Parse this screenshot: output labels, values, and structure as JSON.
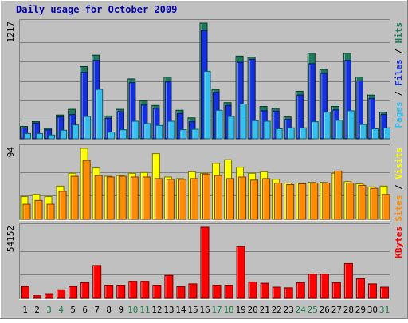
{
  "chart_data": {
    "type": "bar",
    "title": "Daily usage for October 2009",
    "days": [
      "1",
      "2",
      "3",
      "4",
      "5",
      "6",
      "7",
      "8",
      "9",
      "10",
      "11",
      "12",
      "13",
      "14",
      "15",
      "16",
      "17",
      "18",
      "19",
      "20",
      "21",
      "22",
      "23",
      "24",
      "25",
      "26",
      "27",
      "28",
      "29",
      "30",
      "31"
    ],
    "weekend_days": [
      "3",
      "4",
      "10",
      "11",
      "17",
      "18",
      "24",
      "25",
      "31"
    ],
    "panels": [
      {
        "id": "hits",
        "max_label": "1217",
        "ymax": 1217,
        "right_label": {
          "pages": "Pages",
          "files": "Files",
          "hits": "Hits",
          "sep": " / "
        },
        "series": [
          {
            "name": "Hits",
            "color": "#1b7a5a",
            "values": [
              130,
              180,
              110,
              250,
              310,
              760,
              880,
              240,
              310,
              630,
              400,
              350,
              650,
              300,
              220,
              1217,
              520,
              380,
              870,
              860,
              340,
              320,
              230,
              500,
              900,
              730,
              340,
              900,
              650,
              460,
              280
            ]
          },
          {
            "name": "Files",
            "color": "#1230e0",
            "values": [
              115,
              165,
              95,
              230,
              255,
              700,
              825,
              215,
              285,
              590,
              355,
              320,
              600,
              265,
              180,
              1140,
              490,
              350,
              805,
              835,
              295,
              290,
              205,
              460,
              790,
              690,
              305,
              825,
              610,
              425,
              255
            ]
          },
          {
            "name": "Pages",
            "color": "#33c0f0",
            "values": [
              55,
              55,
              40,
              90,
              145,
              235,
              520,
              70,
              95,
              185,
              160,
              140,
              185,
              95,
              100,
              710,
              300,
              235,
              365,
              190,
              185,
              105,
              115,
              115,
              180,
              280,
              195,
              295,
              150,
              105,
              115
            ]
          }
        ]
      },
      {
        "id": "visits",
        "max_label": "94",
        "ymax": 94,
        "right_label": {
          "sites": "Sites",
          "visits": "Visits",
          "sep": " / "
        },
        "series": [
          {
            "name": "Visits",
            "color": "#ffff00",
            "values": [
              30,
              33,
              30,
              44,
              61,
              94,
              68,
              57,
              58,
              61,
              62,
              87,
              56,
              54,
              63,
              61,
              74,
              79,
              69,
              61,
              63,
              53,
              48,
              48,
              49,
              49,
              61,
              50,
              47,
              43,
              44
            ]
          },
          {
            "name": "Sites",
            "color": "#ff8c00",
            "values": [
              20,
              25,
              20,
              37,
              57,
              78,
              58,
              56,
              57,
              56,
              56,
              54,
              53,
              53,
              54,
              60,
              58,
              54,
              56,
              52,
              54,
              48,
              46,
              47,
              48,
              48,
              64,
              48,
              45,
              41,
              33
            ]
          }
        ]
      },
      {
        "id": "kbytes",
        "max_label": "54152",
        "ymax": 54152,
        "right_label": {
          "kbytes": "KBytes"
        },
        "series": [
          {
            "name": "KBytes",
            "color": "#ff0000",
            "values": [
              9000,
              2000,
              3000,
              6500,
              9000,
              12000,
              25000,
              10000,
              10000,
              13000,
              13000,
              10000,
              17500,
              9000,
              11000,
              54152,
              10000,
              10000,
              39500,
              12500,
              11500,
              8500,
              8000,
              12000,
              18500,
              18500,
              12000,
              26500,
              15000,
              11000,
              8500
            ]
          }
        ]
      }
    ],
    "colors": {
      "title": "#0000aa",
      "weekday_label": "#000000",
      "weekend_label": "#1f7a4c",
      "frame": "#c0c0c0",
      "plot_bg": "#c0c0c0",
      "gridline": "#808080"
    }
  }
}
